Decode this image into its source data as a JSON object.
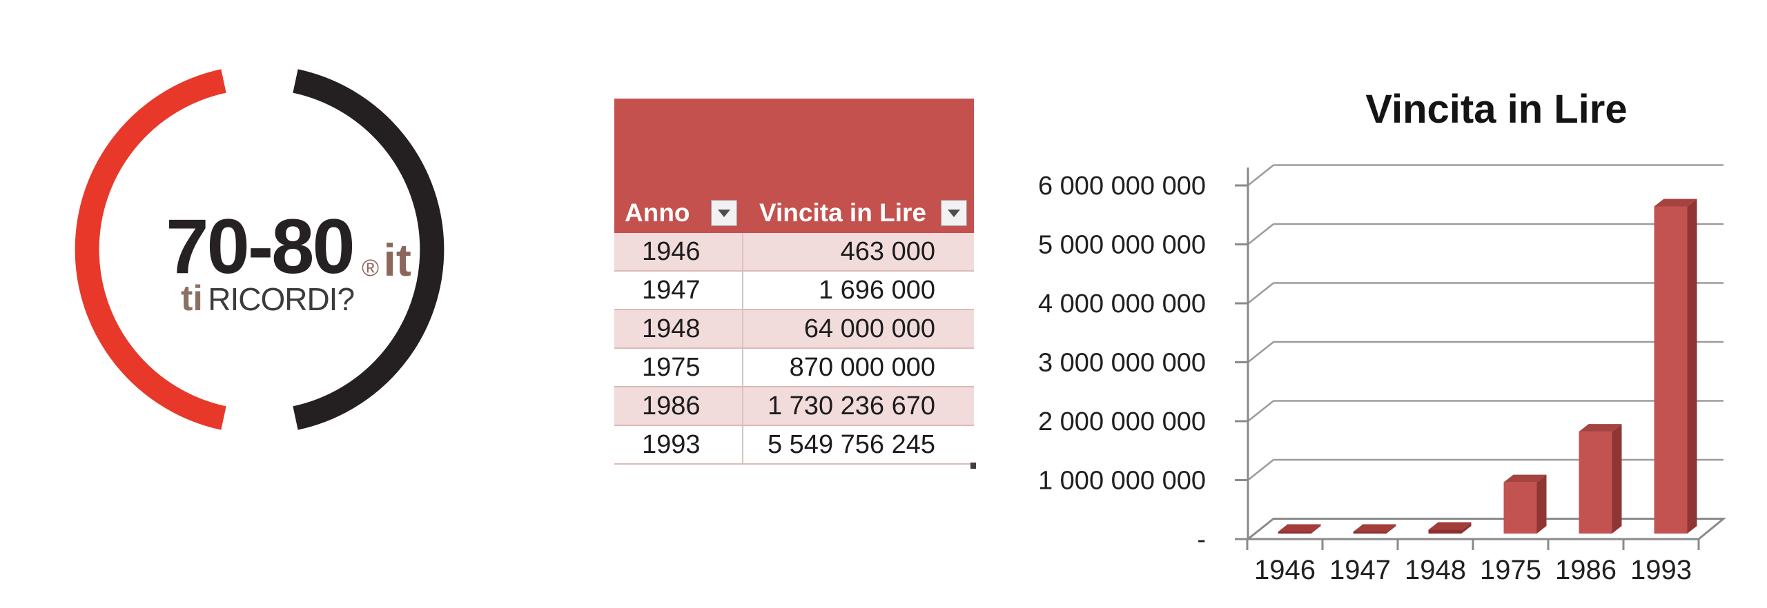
{
  "logo": {
    "brand_top": "70-80",
    "brand_reg": "®",
    "brand_tld": "it",
    "tagline_bold": "ti",
    "tagline_rest": "RICORDI?",
    "ring_red_color": "#e8382a",
    "ring_black_color": "#242021",
    "brand_tld_color": "#8d675c"
  },
  "table": {
    "columns": [
      {
        "label": "Anno"
      },
      {
        "label": "Vincita in Lire"
      }
    ],
    "rows": [
      {
        "anno": "1946",
        "vincita": "463 000"
      },
      {
        "anno": "1947",
        "vincita": "1 696 000"
      },
      {
        "anno": "1948",
        "vincita": "64 000 000"
      },
      {
        "anno": "1975",
        "vincita": "870 000 000"
      },
      {
        "anno": "1986",
        "vincita": "1 730 236 670"
      },
      {
        "anno": "1993",
        "vincita": "5 549 756 245"
      }
    ],
    "header_bg": "#c5514e",
    "band_color": "#f2dcdb"
  },
  "chart_data": {
    "type": "bar",
    "style": "3d-column",
    "title": "Vincita in Lire",
    "categories": [
      "1946",
      "1947",
      "1948",
      "1975",
      "1986",
      "1993"
    ],
    "values": [
      463000,
      1696000,
      64000000,
      870000000,
      1730236670,
      5549756245
    ],
    "xlabel": "",
    "ylabel": "",
    "ylim": [
      0,
      6000000000
    ],
    "y_tick_values": [
      0,
      1000000000,
      2000000000,
      3000000000,
      4000000000,
      5000000000,
      6000000000
    ],
    "y_tick_labels": [
      "-",
      "1 000 000 000",
      "2 000 000 000",
      "3 000 000 000",
      "4 000 000 000",
      "5 000 000 000",
      "6 000 000 000"
    ],
    "grid": true,
    "legend": false,
    "bar_color": "#c25350",
    "bar_side_color": "#8f3634",
    "bar_top_color": "#a54341",
    "gridline_color": "#9b9b9b",
    "axis_color": "#8a8a8a"
  }
}
